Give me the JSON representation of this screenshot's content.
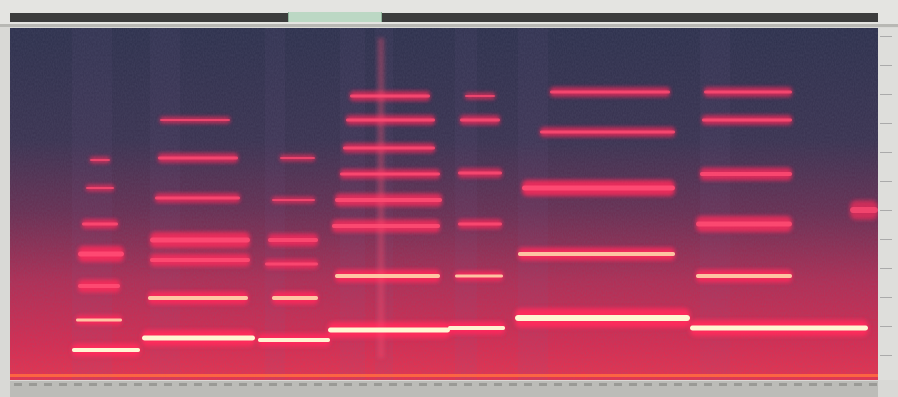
{
  "app": {
    "view": "spectrogram",
    "selection_color": "#bcd8c4",
    "background_color": "#2b2f4a",
    "harmonic_color": "#ff3d6e",
    "fundamental_color": "#fff3c8"
  },
  "frequency_axis": {
    "tick_labels": []
  },
  "time_axis": {
    "tick_labels": []
  }
}
